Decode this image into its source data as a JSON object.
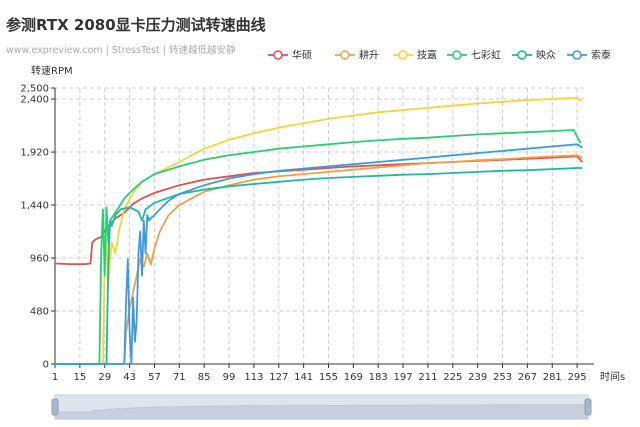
{
  "header": {
    "title": "参测RTX 2080显卡压力测试转速曲线",
    "subtitle": "www.expreview.com | StressTest | 转速越低越安静"
  },
  "colors": {
    "axis": "#333333",
    "grid": "#cccccc",
    "slider_bg": "#dfe5ef",
    "slider_fill": "#c8d0e0",
    "slider_handle": "#a7b7cc"
  },
  "chart_data": {
    "type": "line",
    "ylabel": "转速RPM",
    "xlabel": "时间s",
    "xlim": [
      1,
      300
    ],
    "ylim": [
      0,
      2500
    ],
    "x_ticks": [
      1,
      15,
      29,
      43,
      57,
      71,
      85,
      99,
      113,
      127,
      141,
      155,
      169,
      183,
      197,
      211,
      225,
      239,
      253,
      267,
      281,
      295
    ],
    "y_ticks": [
      0,
      480,
      960,
      1440,
      1920,
      2400,
      2500
    ],
    "grid": true,
    "legend_position": "top-right",
    "series": [
      {
        "name": "华硕",
        "color": "#e0514e",
        "points": [
          [
            1,
            910
          ],
          [
            10,
            905
          ],
          [
            18,
            905
          ],
          [
            21,
            910
          ],
          [
            22,
            1100
          ],
          [
            24,
            1130
          ],
          [
            27,
            1150
          ],
          [
            30,
            1230
          ],
          [
            35,
            1320
          ],
          [
            40,
            1370
          ],
          [
            45,
            1450
          ],
          [
            50,
            1500
          ],
          [
            57,
            1550
          ],
          [
            71,
            1620
          ],
          [
            85,
            1670
          ],
          [
            99,
            1700
          ],
          [
            113,
            1730
          ],
          [
            127,
            1745
          ],
          [
            141,
            1760
          ],
          [
            155,
            1775
          ],
          [
            169,
            1790
          ],
          [
            183,
            1800
          ],
          [
            197,
            1810
          ],
          [
            211,
            1820
          ],
          [
            225,
            1830
          ],
          [
            239,
            1840
          ],
          [
            253,
            1850
          ],
          [
            267,
            1860
          ],
          [
            281,
            1870
          ],
          [
            295,
            1880
          ],
          [
            298,
            1830
          ]
        ]
      },
      {
        "name": "耕升",
        "color": "#f0a04b",
        "points": [
          [
            1,
            0
          ],
          [
            38,
            0
          ],
          [
            40,
            0
          ],
          [
            41,
            280
          ],
          [
            43,
            500
          ],
          [
            45,
            650
          ],
          [
            47,
            800
          ],
          [
            49,
            950
          ],
          [
            51,
            880
          ],
          [
            53,
            1000
          ],
          [
            55,
            900
          ],
          [
            57,
            1050
          ],
          [
            60,
            1200
          ],
          [
            65,
            1350
          ],
          [
            71,
            1440
          ],
          [
            85,
            1560
          ],
          [
            99,
            1620
          ],
          [
            113,
            1670
          ],
          [
            127,
            1700
          ],
          [
            141,
            1720
          ],
          [
            155,
            1740
          ],
          [
            169,
            1760
          ],
          [
            183,
            1780
          ],
          [
            197,
            1800
          ],
          [
            211,
            1820
          ],
          [
            225,
            1830
          ],
          [
            239,
            1845
          ],
          [
            253,
            1855
          ],
          [
            267,
            1870
          ],
          [
            281,
            1880
          ],
          [
            295,
            1890
          ],
          [
            298,
            1870
          ]
        ]
      },
      {
        "name": "技嘉",
        "color": "#f5d33f",
        "points": [
          [
            1,
            0
          ],
          [
            28,
            0
          ],
          [
            29,
            900
          ],
          [
            30,
            1100
          ],
          [
            31,
            700
          ],
          [
            32,
            950
          ],
          [
            33,
            1100
          ],
          [
            35,
            1000
          ],
          [
            37,
            1200
          ],
          [
            40,
            1400
          ],
          [
            45,
            1550
          ],
          [
            50,
            1650
          ],
          [
            57,
            1720
          ],
          [
            71,
            1830
          ],
          [
            85,
            1950
          ],
          [
            99,
            2030
          ],
          [
            113,
            2090
          ],
          [
            127,
            2140
          ],
          [
            141,
            2180
          ],
          [
            155,
            2220
          ],
          [
            169,
            2250
          ],
          [
            183,
            2280
          ],
          [
            197,
            2300
          ],
          [
            211,
            2320
          ],
          [
            225,
            2340
          ],
          [
            239,
            2360
          ],
          [
            253,
            2375
          ],
          [
            267,
            2390
          ],
          [
            281,
            2400
          ],
          [
            295,
            2410
          ],
          [
            297,
            2380
          ]
        ]
      },
      {
        "name": "七彩虹",
        "color": "#2ecc71",
        "points": [
          [
            1,
            0
          ],
          [
            26,
            0
          ],
          [
            27,
            1000
          ],
          [
            28,
            1400
          ],
          [
            29,
            800
          ],
          [
            30,
            1420
          ],
          [
            31,
            1100
          ],
          [
            32,
            1300
          ],
          [
            34,
            1350
          ],
          [
            37,
            1420
          ],
          [
            40,
            1500
          ],
          [
            45,
            1580
          ],
          [
            50,
            1650
          ],
          [
            57,
            1720
          ],
          [
            71,
            1790
          ],
          [
            85,
            1850
          ],
          [
            99,
            1890
          ],
          [
            113,
            1920
          ],
          [
            127,
            1950
          ],
          [
            141,
            1970
          ],
          [
            155,
            1990
          ],
          [
            169,
            2010
          ],
          [
            183,
            2025
          ],
          [
            197,
            2040
          ],
          [
            211,
            2050
          ],
          [
            225,
            2065
          ],
          [
            239,
            2080
          ],
          [
            253,
            2090
          ],
          [
            267,
            2100
          ],
          [
            281,
            2110
          ],
          [
            293,
            2120
          ],
          [
            297,
            2000
          ]
        ]
      },
      {
        "name": "映众",
        "color": "#1abc9c",
        "points": [
          [
            1,
            0
          ],
          [
            30,
            0
          ],
          [
            31,
            900
          ],
          [
            32,
            1300
          ],
          [
            33,
            1250
          ],
          [
            35,
            1350
          ],
          [
            38,
            1400
          ],
          [
            43,
            1420
          ],
          [
            48,
            1380
          ],
          [
            50,
            1300
          ],
          [
            52,
            1400
          ],
          [
            57,
            1460
          ],
          [
            71,
            1540
          ],
          [
            85,
            1580
          ],
          [
            99,
            1610
          ],
          [
            113,
            1630
          ],
          [
            127,
            1650
          ],
          [
            141,
            1670
          ],
          [
            155,
            1685
          ],
          [
            169,
            1695
          ],
          [
            183,
            1705
          ],
          [
            197,
            1715
          ],
          [
            211,
            1720
          ],
          [
            225,
            1730
          ],
          [
            239,
            1740
          ],
          [
            253,
            1750
          ],
          [
            267,
            1755
          ],
          [
            281,
            1765
          ],
          [
            295,
            1775
          ],
          [
            298,
            1775
          ]
        ]
      },
      {
        "name": "索泰",
        "color": "#3b9be0",
        "points": [
          [
            1,
            0
          ],
          [
            40,
            0
          ],
          [
            41,
            550
          ],
          [
            42,
            950
          ],
          [
            43,
            300
          ],
          [
            44,
            0
          ],
          [
            45,
            600
          ],
          [
            46,
            200
          ],
          [
            47,
            400
          ],
          [
            48,
            1000
          ],
          [
            49,
            1200
          ],
          [
            50,
            800
          ],
          [
            51,
            1300
          ],
          [
            52,
            1000
          ],
          [
            53,
            1350
          ],
          [
            54,
            1300
          ],
          [
            55,
            1320
          ],
          [
            57,
            1350
          ],
          [
            60,
            1400
          ],
          [
            65,
            1480
          ],
          [
            71,
            1540
          ],
          [
            85,
            1620
          ],
          [
            99,
            1680
          ],
          [
            113,
            1720
          ],
          [
            127,
            1750
          ],
          [
            141,
            1770
          ],
          [
            155,
            1790
          ],
          [
            169,
            1810
          ],
          [
            183,
            1830
          ],
          [
            197,
            1850
          ],
          [
            211,
            1870
          ],
          [
            225,
            1890
          ],
          [
            239,
            1910
          ],
          [
            253,
            1930
          ],
          [
            267,
            1950
          ],
          [
            281,
            1970
          ],
          [
            295,
            1990
          ],
          [
            298,
            1960
          ]
        ]
      }
    ]
  }
}
